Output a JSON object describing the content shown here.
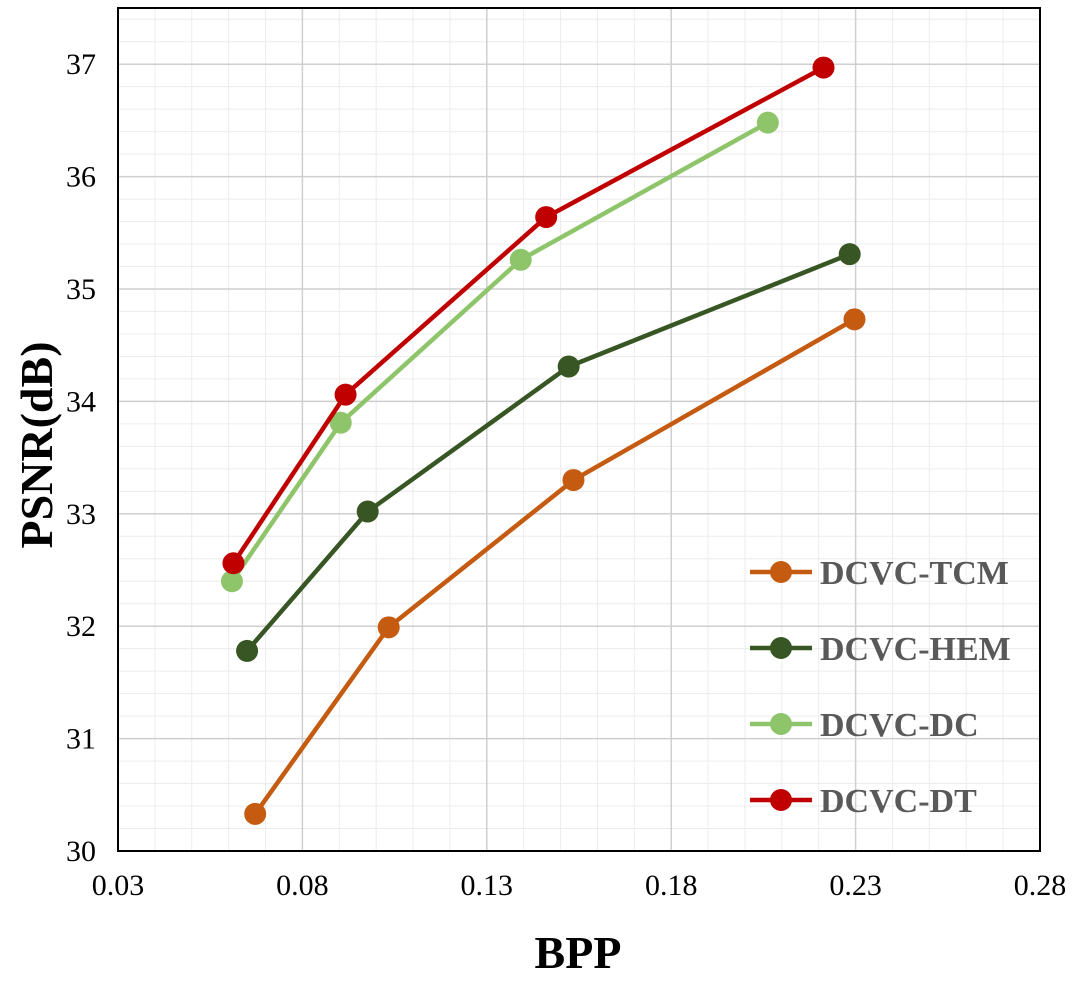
{
  "chart_data": {
    "type": "line",
    "xlabel": "BPP",
    "ylabel": "PSNR(dB)",
    "xlim": [
      0.03,
      0.28
    ],
    "ylim": [
      30,
      37.5
    ],
    "x_ticks": [
      "0.03",
      "0.08",
      "0.13",
      "0.18",
      "0.23",
      "0.28"
    ],
    "y_ticks": [
      "30",
      "31",
      "32",
      "33",
      "34",
      "35",
      "36",
      "37"
    ],
    "x_tick_values": [
      0.03,
      0.08,
      0.13,
      0.18,
      0.23,
      0.28
    ],
    "y_tick_values": [
      30,
      31,
      32,
      33,
      34,
      35,
      36,
      37
    ],
    "grid": true,
    "legend_position": "bottom-right",
    "series": [
      {
        "name": "DCVC-TCM",
        "color": "#c55a11",
        "points": [
          [
            0.0672,
            30.33
          ],
          [
            0.1034,
            31.99
          ],
          [
            0.1535,
            33.3
          ],
          [
            0.2297,
            34.73
          ]
        ]
      },
      {
        "name": "DCVC-HEM",
        "color": "#375623",
        "points": [
          [
            0.065,
            31.78
          ],
          [
            0.0977,
            33.02
          ],
          [
            0.1522,
            34.31
          ],
          [
            0.2284,
            35.31
          ]
        ]
      },
      {
        "name": "DCVC-DC",
        "color": "#8fc56a",
        "points": [
          [
            0.0609,
            32.4
          ],
          [
            0.0904,
            33.81
          ],
          [
            0.1392,
            35.26
          ],
          [
            0.2062,
            36.48
          ]
        ]
      },
      {
        "name": "DCVC-DT",
        "color": "#c00000",
        "points": [
          [
            0.0613,
            32.56
          ],
          [
            0.0917,
            34.06
          ],
          [
            0.1461,
            35.64
          ],
          [
            0.2213,
            36.97
          ]
        ]
      }
    ]
  }
}
